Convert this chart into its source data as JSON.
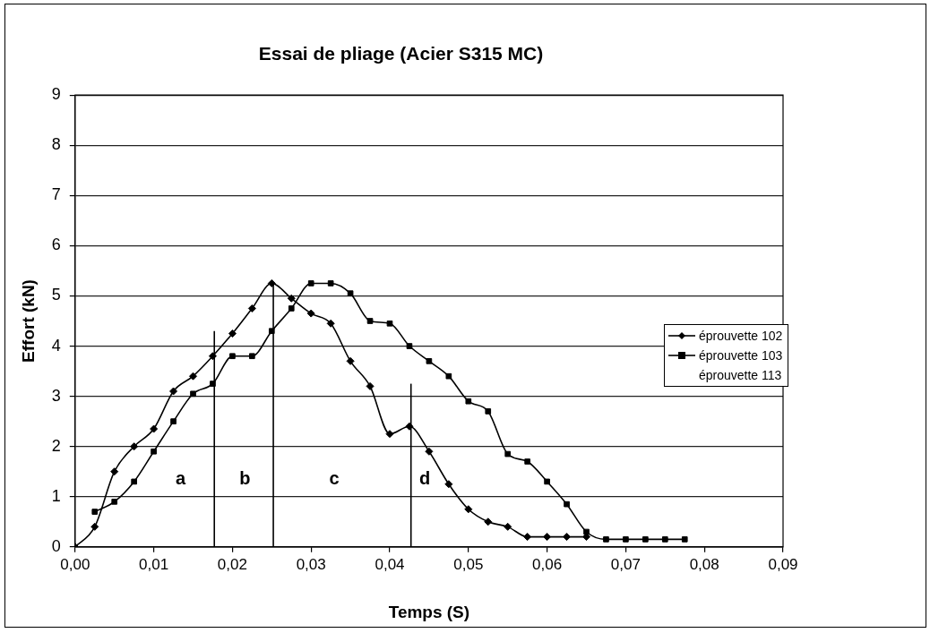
{
  "chart_data": {
    "type": "line",
    "title": "Essai de pliage (Acier S315 MC)",
    "xlabel": "Temps (S)",
    "ylabel": "Effort (kN)",
    "xlim": [
      0,
      0.09
    ],
    "xticks": [
      {
        "value": 0,
        "label": "0,00"
      },
      {
        "value": 0.01,
        "label": "0,01"
      },
      {
        "value": 0.02,
        "label": "0,02"
      },
      {
        "value": 0.03,
        "label": "0,03"
      },
      {
        "value": 0.04,
        "label": "0,04"
      },
      {
        "value": 0.05,
        "label": "0,05"
      },
      {
        "value": 0.06,
        "label": "0,06"
      },
      {
        "value": 0.07,
        "label": "0,07"
      },
      {
        "value": 0.08,
        "label": "0,08"
      },
      {
        "value": 0.09,
        "label": "0,09"
      }
    ],
    "ylim": [
      0,
      9
    ],
    "yticks": [
      0,
      1,
      2,
      3,
      4,
      5,
      6,
      7,
      8,
      9
    ],
    "grid": "y",
    "legend": "right",
    "marker": "diamond",
    "line_style": "solid",
    "series": [
      {
        "name": "éprouvette 102",
        "color": "#000000",
        "x": [
          0,
          0.0025,
          0.005,
          0.0075,
          0.01,
          0.0125,
          0.015,
          0.0175,
          0.02,
          0.0225,
          0.025,
          0.0275,
          0.03,
          0.0325,
          0.035,
          0.0375,
          0.04,
          0.0425,
          0.045,
          0.0475,
          0.05,
          0.0525,
          0.055,
          0.0575,
          0.06,
          0.0625,
          0.065
        ],
        "values": [
          0,
          0.4,
          1.5,
          2.0,
          2.35,
          3.1,
          3.4,
          3.8,
          4.25,
          4.75,
          5.25,
          4.95,
          4.65,
          4.45,
          3.7,
          3.2,
          2.25,
          2.4,
          1.9,
          1.25,
          0.75,
          0.5,
          0.4,
          0.2,
          0.2,
          0.2,
          0.2
        ]
      },
      {
        "name": "éprouvette 103",
        "color": "#000000",
        "marker": "square",
        "x": [
          0.0025,
          0.005,
          0.0075,
          0.01,
          0.0125,
          0.015,
          0.0175,
          0.02,
          0.0225,
          0.025,
          0.0275,
          0.03,
          0.0325,
          0.035,
          0.0375,
          0.04,
          0.0425,
          0.045,
          0.0475,
          0.05,
          0.0525,
          0.055,
          0.0575,
          0.06,
          0.0625,
          0.065,
          0.0675,
          0.07,
          0.0725,
          0.075,
          0.0775
        ],
        "values": [
          0.7,
          0.9,
          1.3,
          1.9,
          2.5,
          3.05,
          3.25,
          3.8,
          3.8,
          4.3,
          4.75,
          5.25,
          5.25,
          5.05,
          4.5,
          4.45,
          4.0,
          3.7,
          3.4,
          2.9,
          2.7,
          1.85,
          1.7,
          1.3,
          0.85,
          0.3,
          0.15,
          0.15,
          0.15,
          0.15,
          0.15
        ]
      },
      {
        "name": "éprouvette 113"
      },
      {
        "color": "#000000",
        "marker": "none",
        "x": [
          0.0177,
          0.0177
        ],
        "values": [
          0,
          4.3
        ]
      },
      {
        "color": "#000000",
        "marker": "none",
        "x": [
          0.0252,
          0.0252
        ],
        "values": [
          0,
          5.25
        ]
      },
      {
        "color": "#000000",
        "marker": "none",
        "x": [
          0.0427,
          0.0427
        ],
        "values": [
          0,
          3.25
        ]
      }
    ],
    "annotations": [
      "a",
      "b",
      "c",
      "d"
    ]
  }
}
